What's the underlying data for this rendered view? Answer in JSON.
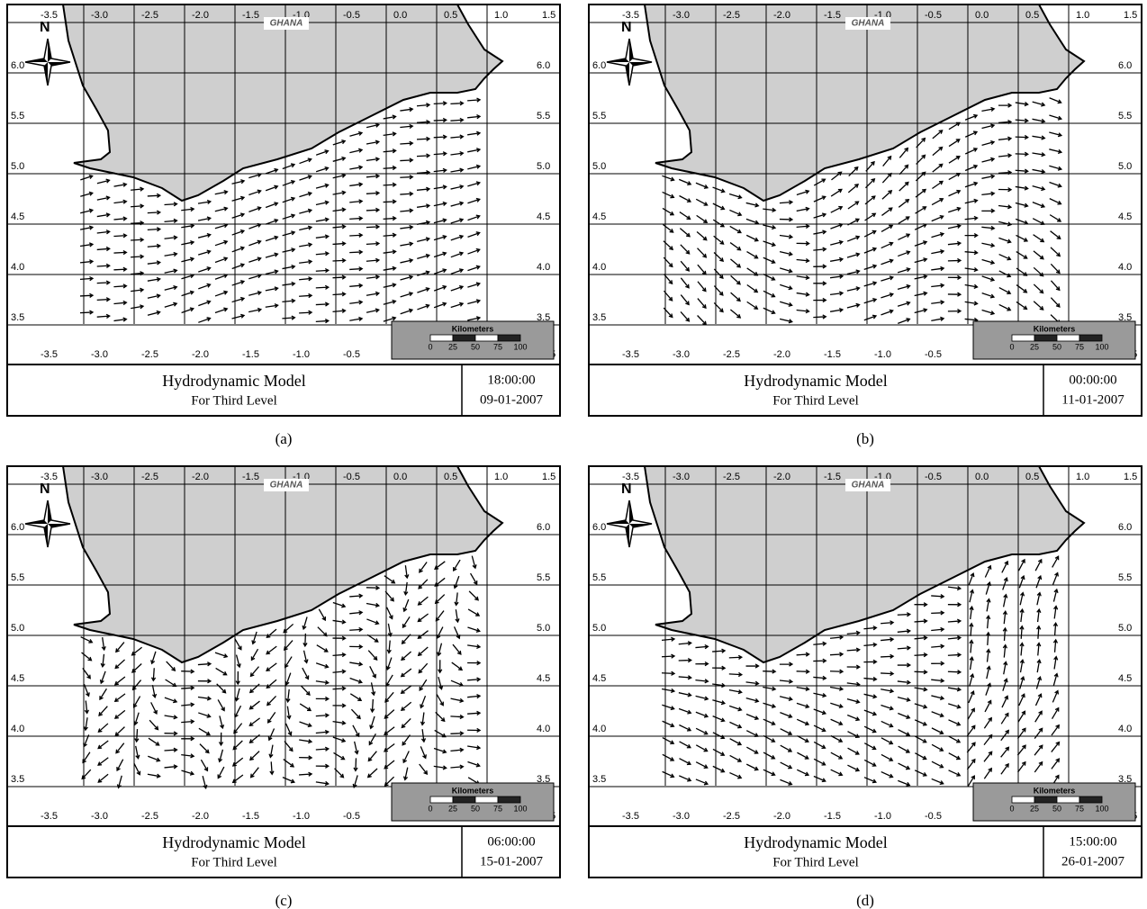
{
  "panels": [
    {
      "label": "(a)",
      "title": "Hydrodynamic Model",
      "subtitle": "For Third Level",
      "time": "18:00:00",
      "date": "09-01-2007"
    },
    {
      "label": "(b)",
      "title": "Hydrodynamic Model",
      "subtitle": "For Third Level",
      "time": "00:00:00",
      "date": "11-01-2007"
    },
    {
      "label": "(c)",
      "title": "Hydrodynamic Model",
      "subtitle": "For Third Level",
      "time": "06:00:00",
      "date": "15-01-2007"
    },
    {
      "label": "(d)",
      "title": "Hydrodynamic Model",
      "subtitle": "For Third Level",
      "time": "15:00:00",
      "date": "26-01-2007"
    }
  ],
  "map": {
    "country": "GHANA",
    "north": "N",
    "longitudes": [
      "-3.5",
      "-3.0",
      "-2.5",
      "-2.0",
      "-1.5",
      "-1.0",
      "-0.5",
      "0.0",
      "0.5",
      "1.0",
      "1.5"
    ],
    "latitudes": [
      "6.0",
      "5.5",
      "5.0",
      "4.5",
      "4.0",
      "3.5"
    ],
    "scale": {
      "title": "Kilometers",
      "labels": [
        "0",
        "25",
        "50",
        "75",
        "100"
      ]
    }
  }
}
